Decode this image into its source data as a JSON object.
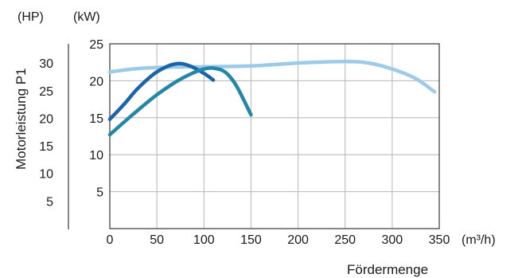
{
  "chart_data": {
    "type": "line",
    "xlabel": "Fördermenge",
    "xunit": "(m³/h)",
    "ylabel": "Motorleistung P1",
    "y_left_unit": "(HP)",
    "y_right_unit": "(kW)",
    "xlim": [
      0,
      350
    ],
    "ylim_kw": [
      0,
      25
    ],
    "ylim_hp": [
      0,
      33.5
    ],
    "x_ticks": [
      "0",
      "50",
      "100",
      "150",
      "200",
      "250",
      "300",
      "350"
    ],
    "kw_ticks": [
      "5",
      "10",
      "15",
      "20",
      "25"
    ],
    "hp_ticks": [
      "5",
      "10",
      "15",
      "20",
      "25",
      "30"
    ],
    "grid": true,
    "series": [
      {
        "color": "#9ccbe9",
        "x": [
          0,
          25,
          50,
          100,
          150,
          200,
          250,
          275,
          300,
          325,
          345
        ],
        "y": [
          21.2,
          21.6,
          21.8,
          21.9,
          22.0,
          22.4,
          22.6,
          22.4,
          21.6,
          20.3,
          18.5
        ]
      },
      {
        "color": "#1c64a8",
        "x": [
          0,
          15,
          30,
          50,
          70,
          85,
          100,
          110
        ],
        "y": [
          14.8,
          16.8,
          19.0,
          21.2,
          22.3,
          22.0,
          21.0,
          20.1
        ]
      },
      {
        "color": "#2487a7",
        "x": [
          0,
          25,
          50,
          75,
          100,
          115,
          125,
          135,
          150
        ],
        "y": [
          12.7,
          15.5,
          18.1,
          20.2,
          21.6,
          21.6,
          20.9,
          19.2,
          15.4
        ]
      }
    ]
  }
}
